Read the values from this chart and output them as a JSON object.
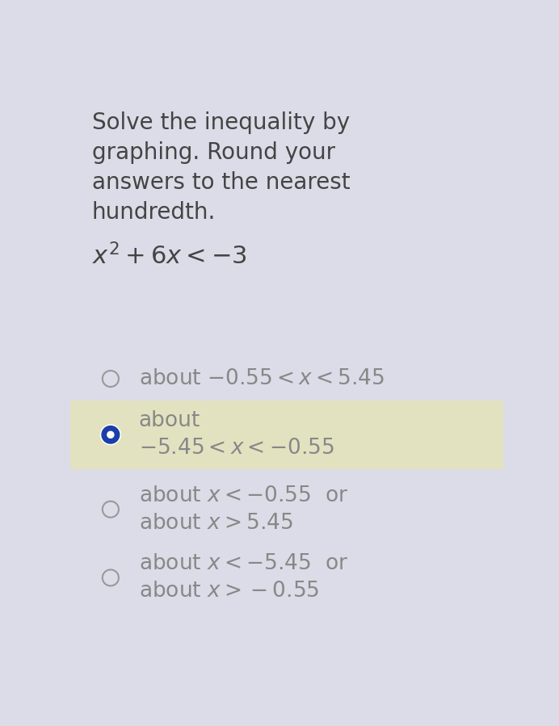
{
  "background_color": "#dcdce8",
  "title_lines": [
    "Solve the inequality by",
    "graphing. Round your",
    "answers to the nearest",
    "hundredth."
  ],
  "equation": "$x^2 + 6x < -3$",
  "options": [
    {
      "selected": false,
      "two_lines": false,
      "line1": "about $-0.55 < x < 5.45$",
      "line2": ""
    },
    {
      "selected": true,
      "two_lines": true,
      "line1": "about",
      "line2": "$-5.45 < x < -0.55$"
    },
    {
      "selected": false,
      "two_lines": true,
      "line1": "about $x < -0.55$  or",
      "line2": "about $x > 5.45$"
    },
    {
      "selected": false,
      "two_lines": true,
      "line1": "about $x < -5.45$  or",
      "line2": "about $x > -0.55$"
    }
  ],
  "highlight_color": "#e2e2c0",
  "radio_selected_color": "#1a3fa8",
  "radio_unselected_color": "#999999",
  "text_color": "#888888",
  "title_color": "#444444",
  "equation_color": "#444444",
  "font_size_title": 20,
  "font_size_equation": 22,
  "font_size_option": 19
}
